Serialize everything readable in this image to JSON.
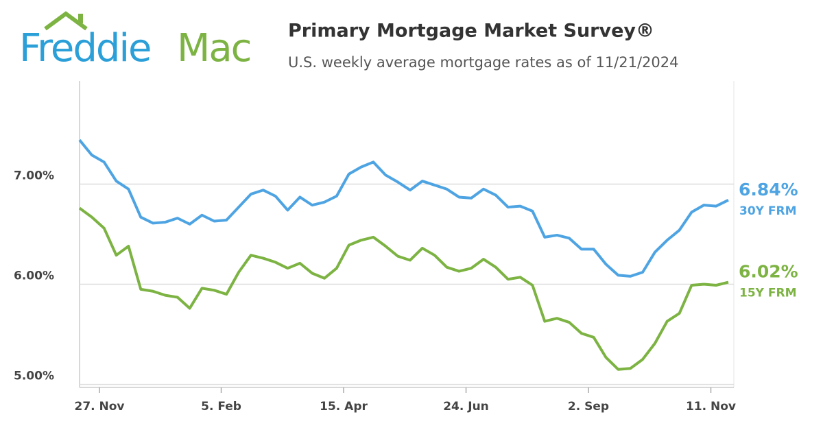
{
  "logo": [
    "Freddie",
    "Mac"
  ],
  "chart_data": {
    "type": "line",
    "title": "Primary Mortgage Market Survey®",
    "subtitle": "U.S. weekly average mortgage rates as of 11/21/2024",
    "categories": [
      null,
      null,
      null,
      null,
      null,
      null,
      null,
      null,
      null,
      null,
      null,
      null,
      null,
      null,
      null,
      null,
      null,
      null,
      null,
      null,
      null,
      null,
      null,
      null,
      null,
      null,
      null,
      null,
      null,
      null,
      null,
      null,
      null,
      null,
      null,
      null,
      null,
      null,
      null,
      null,
      null,
      null,
      null,
      null,
      null,
      null,
      null,
      null,
      null,
      null,
      null,
      null,
      null,
      null
    ],
    "series": [
      {
        "name": "30Y FRM",
        "color": "#4ea4e2",
        "values": [
          7.44,
          7.29,
          7.22,
          7.03,
          6.95,
          6.67,
          6.61,
          6.62,
          6.66,
          6.6,
          6.69,
          6.63,
          6.64,
          6.77,
          6.9,
          6.94,
          6.88,
          6.74,
          6.87,
          6.79,
          6.82,
          6.88,
          7.1,
          7.17,
          7.22,
          7.09,
          7.02,
          6.94,
          7.03,
          6.99,
          6.95,
          6.87,
          6.86,
          6.95,
          6.89,
          6.77,
          6.78,
          6.73,
          6.47,
          6.49,
          6.46,
          6.35,
          6.35,
          6.2,
          6.09,
          6.08,
          6.12,
          6.32,
          6.44,
          6.54,
          6.72,
          6.79,
          6.78,
          6.84
        ],
        "value_labels": [
          null,
          null,
          null,
          null,
          null,
          null,
          null,
          null,
          null,
          null,
          null,
          null,
          null,
          null,
          null,
          null,
          null,
          null,
          null,
          null,
          null,
          null,
          null,
          null,
          null,
          null,
          null,
          null,
          null,
          null,
          null,
          null,
          null,
          null,
          null,
          null,
          null,
          null,
          null,
          null,
          null,
          null,
          null,
          null,
          null,
          null,
          null,
          null,
          null,
          null,
          null,
          null,
          null,
          "6.84%"
        ]
      },
      {
        "name": "15Y FRM",
        "color": "#7cb342",
        "values": [
          6.76,
          6.67,
          6.56,
          6.29,
          6.38,
          5.95,
          5.93,
          5.89,
          5.87,
          5.76,
          5.96,
          5.94,
          5.9,
          6.12,
          6.29,
          6.26,
          6.22,
          6.16,
          6.21,
          6.11,
          6.06,
          6.16,
          6.39,
          6.44,
          6.47,
          6.38,
          6.28,
          6.24,
          6.36,
          6.29,
          6.17,
          6.13,
          6.16,
          6.25,
          6.17,
          6.05,
          6.07,
          5.99,
          5.63,
          5.66,
          5.62,
          5.51,
          5.47,
          5.27,
          5.15,
          5.16,
          5.25,
          5.41,
          5.63,
          5.71,
          5.99,
          6.0,
          5.99,
          6.02
        ],
        "value_labels": [
          null,
          null,
          null,
          null,
          null,
          null,
          null,
          null,
          null,
          null,
          null,
          null,
          null,
          null,
          null,
          null,
          null,
          null,
          null,
          null,
          null,
          null,
          null,
          null,
          null,
          null,
          null,
          null,
          null,
          null,
          null,
          null,
          null,
          null,
          null,
          null,
          null,
          null,
          null,
          null,
          null,
          null,
          null,
          null,
          null,
          null,
          null,
          null,
          null,
          null,
          null,
          null,
          null,
          "6.02%"
        ]
      }
    ],
    "xticks": [
      {
        "value": 1.625,
        "label": "27. Nov"
      },
      {
        "value": 11.571,
        "label": "5. Feb"
      },
      {
        "value": 21.571,
        "label": "15. Apr"
      },
      {
        "value": 31.571,
        "label": "24. Jun"
      },
      {
        "value": 41.571,
        "label": "2. Sep"
      },
      {
        "value": 51.571,
        "label": "11. Nov"
      }
    ],
    "ylim": [
      4.97,
      8.03
    ],
    "yticks": [
      {
        "value": 5,
        "label": "5.00%"
      },
      {
        "value": 6,
        "label": "6.00%"
      },
      {
        "value": 7,
        "label": "7.00%"
      }
    ],
    "grid": true
  }
}
